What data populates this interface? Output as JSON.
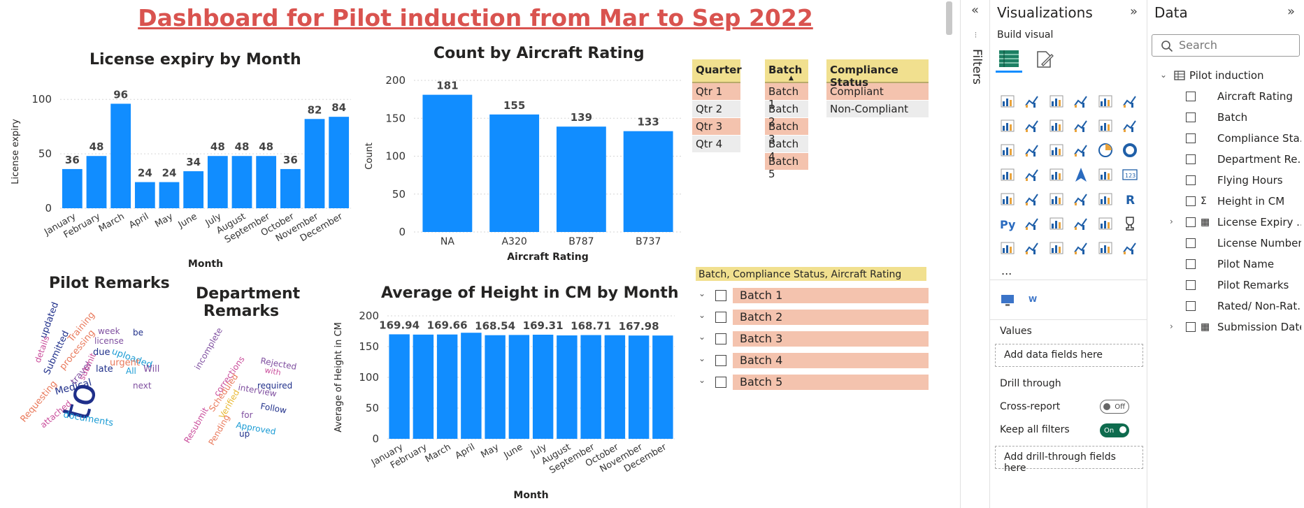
{
  "dashboard": {
    "title": "Dashboard for Pilot induction from Mar to Sep 2022"
  },
  "chart_data": [
    {
      "type": "bar",
      "title": "License expiry by Month",
      "xlabel": "Month",
      "ylabel": "License expiry",
      "categories": [
        "January",
        "February",
        "March",
        "April",
        "May",
        "June",
        "July",
        "August",
        "September",
        "October",
        "November",
        "December"
      ],
      "values": [
        36,
        48,
        96,
        24,
        24,
        34,
        48,
        48,
        48,
        36,
        82,
        84
      ],
      "yticks": [
        0,
        50,
        100
      ],
      "ylim": [
        0,
        104
      ],
      "color": "#118dff"
    },
    {
      "type": "bar",
      "title": "Count by Aircraft Rating",
      "xlabel": "Aircraft Rating",
      "ylabel": "Count",
      "categories": [
        "NA",
        "A320",
        "B787",
        "B737"
      ],
      "values": [
        181,
        155,
        139,
        133
      ],
      "yticks": [
        0,
        50,
        100,
        150,
        200
      ],
      "ylim": [
        0,
        200
      ],
      "color": "#118dff"
    },
    {
      "type": "bar",
      "title": "Average of Height in CM by Month",
      "xlabel": "Month",
      "ylabel": "Average of Height in CM",
      "categories": [
        "January",
        "February",
        "March",
        "April",
        "May",
        "June",
        "July",
        "August",
        "September",
        "October",
        "November",
        "December"
      ],
      "values": [
        169.94,
        169.5,
        169.66,
        172.5,
        168.54,
        168.9,
        169.31,
        168.2,
        168.71,
        168.5,
        167.98,
        168.0
      ],
      "labels": [
        "169.94",
        "",
        "169.66",
        "",
        "168.54",
        "",
        "169.31",
        "",
        "168.71",
        "",
        "167.98",
        ""
      ],
      "yticks": [
        0,
        50,
        100,
        150,
        200
      ],
      "ylim": [
        0,
        200
      ],
      "color": "#118dff"
    }
  ],
  "pilot_remarks": {
    "title": "Pilot Remarks",
    "words": [
      {
        "text": "to",
        "color": "#1f2f8a",
        "size": 54,
        "rot": -75
      },
      {
        "text": "updated",
        "color": "#1f2f8a",
        "size": 13,
        "rot": -70
      },
      {
        "text": "Training",
        "color": "#e9795b",
        "size": 13,
        "rot": -50
      },
      {
        "text": "week",
        "color": "#7f4fa0",
        "size": 12,
        "rot": 0
      },
      {
        "text": "be",
        "color": "#1f2f8a",
        "size": 12,
        "rot": 0
      },
      {
        "text": "license",
        "color": "#7f4fa0",
        "size": 12,
        "rot": 0
      },
      {
        "text": "details",
        "color": "#c94b9a",
        "size": 12,
        "rot": -70
      },
      {
        "text": "Submitted",
        "color": "#1f2f8a",
        "size": 13,
        "rot": -65
      },
      {
        "text": "processing",
        "color": "#e9795b",
        "size": 13,
        "rot": -50
      },
      {
        "text": "due",
        "color": "#1f2f8a",
        "size": 13,
        "rot": 0
      },
      {
        "text": "uploaded",
        "color": "#1a9bd4",
        "size": 13,
        "rot": 20
      },
      {
        "text": "travel",
        "color": "#7f4fa0",
        "size": 13,
        "rot": -50
      },
      {
        "text": "urgent",
        "color": "#e9795b",
        "size": 13,
        "rot": 0
      },
      {
        "text": "Will",
        "color": "#7f4fa0",
        "size": 13,
        "rot": 0
      },
      {
        "text": "submit",
        "color": "#c94b9a",
        "size": 12,
        "rot": -65
      },
      {
        "text": "late",
        "color": "#1f2f8a",
        "size": 13,
        "rot": 0
      },
      {
        "text": "All",
        "color": "#1a9bd4",
        "size": 12,
        "rot": 0
      },
      {
        "text": "Medical",
        "color": "#1f2f8a",
        "size": 14,
        "rot": -15
      },
      {
        "text": "next",
        "color": "#7f4fa0",
        "size": 12,
        "rot": 0
      },
      {
        "text": "Requesting",
        "color": "#e9795b",
        "size": 13,
        "rot": -50
      },
      {
        "text": "attached",
        "color": "#c94b9a",
        "size": 12,
        "rot": -40
      },
      {
        "text": "documents",
        "color": "#1a9bd4",
        "size": 13,
        "rot": 10
      }
    ]
  },
  "department_remarks": {
    "title_line1": "Department",
    "title_line2": "Remarks",
    "words": [
      {
        "text": "incomplete",
        "color": "#7f4fa0",
        "size": 12,
        "rot": -60
      },
      {
        "text": "Rejected",
        "color": "#7f4fa0",
        "size": 12,
        "rot": 10
      },
      {
        "text": "with",
        "color": "#c94b9a",
        "size": 11,
        "rot": 10
      },
      {
        "text": "corrections",
        "color": "#c94b9a",
        "size": 12,
        "rot": -55
      },
      {
        "text": "required",
        "color": "#1f2f8a",
        "size": 12,
        "rot": 0
      },
      {
        "text": "interview",
        "color": "#7f4fa0",
        "size": 12,
        "rot": 10
      },
      {
        "text": "Scheduled",
        "color": "#e9795b",
        "size": 12,
        "rot": -55
      },
      {
        "text": "Verified",
        "color": "#e8b730",
        "size": 12,
        "rot": -60
      },
      {
        "text": "Follow",
        "color": "#1f2f8a",
        "size": 12,
        "rot": 10
      },
      {
        "text": "for",
        "color": "#7f4fa0",
        "size": 12,
        "rot": 0
      },
      {
        "text": "Resubmit",
        "color": "#c94b9a",
        "size": 12,
        "rot": -60
      },
      {
        "text": "Pending",
        "color": "#e9795b",
        "size": 12,
        "rot": -60
      },
      {
        "text": "Approved",
        "color": "#1a9bd4",
        "size": 12,
        "rot": 10
      },
      {
        "text": "up",
        "color": "#1f2f8a",
        "size": 12,
        "rot": 0
      }
    ]
  },
  "slicers": {
    "quarter": {
      "header": "Quarter",
      "items": [
        {
          "label": "Qtr 1",
          "selected": true
        },
        {
          "label": "Qtr 2",
          "selected": false
        },
        {
          "label": "Qtr 3",
          "selected": true
        },
        {
          "label": "Qtr 4",
          "selected": false
        }
      ]
    },
    "batch": {
      "header": "Batch",
      "items": [
        {
          "label": "Batch 1",
          "selected": true
        },
        {
          "label": "Batch 2",
          "selected": false
        },
        {
          "label": "Batch 3",
          "selected": true
        },
        {
          "label": "Batch 4",
          "selected": false
        },
        {
          "label": "Batch 5",
          "selected": true
        }
      ]
    },
    "compliance": {
      "header": "Compliance Status",
      "items": [
        {
          "label": "Compliant",
          "selected": true
        },
        {
          "label": "Non-Compliant",
          "selected": false
        }
      ]
    }
  },
  "hierarchy_slicer": {
    "header": "Batch, Compliance Status, Aircraft Rating",
    "items": [
      "Batch 1",
      "Batch 2",
      "Batch 3",
      "Batch 4",
      "Batch 5"
    ]
  },
  "filters_pane": {
    "label": "Filters"
  },
  "visualizations_pane": {
    "title": "Visualizations",
    "build_visual": "Build visual",
    "more": "...",
    "values_label": "Values",
    "values_drop": "Add data fields here",
    "drill_through": "Drill through",
    "cross_report": "Cross-report",
    "cross_report_state": "Off",
    "keep_all_filters": "Keep all filters",
    "keep_all_filters_state": "On",
    "drill_drop": "Add drill-through fields here"
  },
  "data_pane": {
    "title": "Data",
    "search_placeholder": "Search",
    "table_name": "Pilot induction",
    "fields": [
      {
        "name": "Aircraft Rating",
        "type": "",
        "expandable": false
      },
      {
        "name": "Batch",
        "type": "",
        "expandable": false
      },
      {
        "name": "Compliance Sta...",
        "type": "",
        "expandable": false
      },
      {
        "name": "Department Re...",
        "type": "",
        "expandable": false
      },
      {
        "name": "Flying Hours",
        "type": "",
        "expandable": false
      },
      {
        "name": "Height in CM",
        "type": "sum",
        "expandable": false
      },
      {
        "name": "License Expiry ...",
        "type": "date",
        "expandable": true
      },
      {
        "name": "License Number",
        "type": "",
        "expandable": false
      },
      {
        "name": "Pilot Name",
        "type": "",
        "expandable": false
      },
      {
        "name": "Pilot Remarks",
        "type": "",
        "expandable": false
      },
      {
        "name": "Rated/ Non-Rat...",
        "type": "",
        "expandable": false
      },
      {
        "name": "Submission Date",
        "type": "date",
        "expandable": true
      }
    ]
  },
  "colors": {
    "accent": "#118dff",
    "title_red": "#d9534f",
    "slicer_header": "#f1e08f",
    "slicer_selected": "#f4c3ae",
    "toggle_on": "#0e6b4e"
  }
}
